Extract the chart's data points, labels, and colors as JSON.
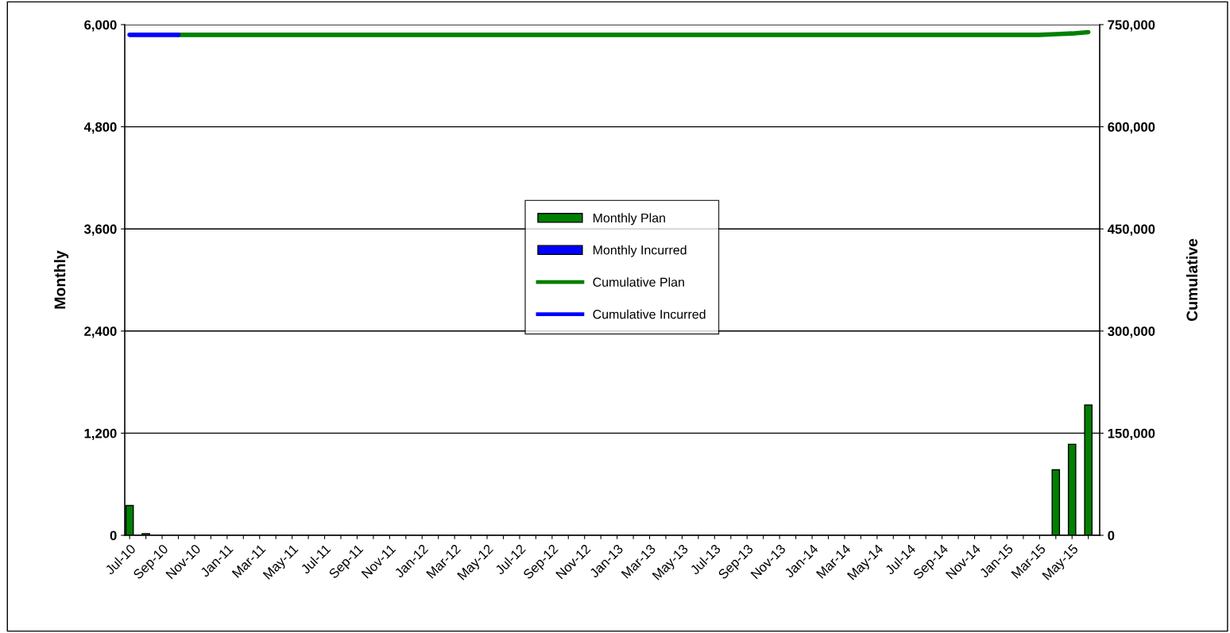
{
  "chart_data": {
    "type": "bar",
    "ylabel": "Monthly",
    "y2label": "Cumulative",
    "categories": [
      "Jul-10",
      null,
      "Sep-10",
      null,
      "Nov-10",
      null,
      "Jan-11",
      null,
      "Mar-11",
      null,
      "May-11",
      null,
      "Jul-11",
      null,
      "Sep-11",
      null,
      "Nov-11",
      null,
      "Jan-12",
      null,
      "Mar-12",
      null,
      "May-12",
      null,
      "Jul-12",
      null,
      "Sep-12",
      null,
      "Nov-12",
      null,
      "Jan-13",
      null,
      "Mar-13",
      null,
      "May-13",
      null,
      "Jul-13",
      null,
      "Sep-13",
      null,
      "Nov-13",
      null,
      "Jan-14",
      null,
      "Mar-14",
      null,
      "May-14",
      null,
      "Jul-14",
      null,
      "Sep-14",
      null,
      "Nov-14",
      null,
      "Jan-15",
      null,
      "Mar-15",
      null,
      "May-15",
      null
    ],
    "series": [
      {
        "name": "Monthly Plan",
        "color": "#008000",
        "values": [
          350,
          20,
          null,
          null,
          null,
          null,
          null,
          null,
          null,
          null,
          null,
          null,
          null,
          null,
          null,
          null,
          null,
          null,
          null,
          null,
          null,
          null,
          null,
          null,
          null,
          null,
          null,
          null,
          null,
          null,
          null,
          null,
          null,
          null,
          null,
          null,
          null,
          null,
          null,
          null,
          null,
          null,
          null,
          null,
          null,
          null,
          null,
          null,
          null,
          null,
          null,
          null,
          null,
          null,
          null,
          null,
          null,
          770,
          1070,
          1530
        ]
      },
      {
        "name": "Monthly Incurred",
        "color": "#0000ff",
        "values": [
          null,
          null,
          null,
          null,
          null,
          null,
          null,
          null,
          null,
          null,
          null,
          null,
          null,
          null,
          null,
          null,
          null,
          null,
          null,
          null,
          null,
          null,
          null,
          null,
          null,
          null,
          null,
          null,
          null,
          null,
          null,
          null,
          null,
          null,
          null,
          null,
          null,
          null,
          null,
          null,
          null,
          null,
          null,
          null,
          null,
          null,
          null,
          null,
          null,
          null,
          null,
          null,
          null,
          null,
          null,
          null,
          null,
          null,
          null,
          null
        ]
      },
      {
        "name": "Cumulative Plan",
        "type": "line",
        "axis": "y2",
        "color": "#008000",
        "values": [
          null,
          null,
          null,
          735000,
          735000,
          735000,
          735000,
          735000,
          735000,
          735000,
          735000,
          735000,
          735000,
          735000,
          735000,
          735000,
          735000,
          735000,
          735000,
          735000,
          735000,
          735000,
          735000,
          735000,
          735000,
          735000,
          735000,
          735000,
          735000,
          735000,
          735000,
          735000,
          735000,
          735000,
          735000,
          735000,
          735000,
          735000,
          735000,
          735000,
          735000,
          735000,
          735000,
          735000,
          735000,
          735000,
          735000,
          735000,
          735000,
          735000,
          735000,
          735000,
          735000,
          735000,
          735000,
          735000,
          735000,
          736000,
          737000,
          739000
        ]
      },
      {
        "name": "Cumulative Incurred",
        "type": "line",
        "axis": "y2",
        "color": "#0000ff",
        "values": [
          735000,
          735000,
          735000,
          735000,
          null,
          null,
          null,
          null,
          null,
          null,
          null,
          null,
          null,
          null,
          null,
          null,
          null,
          null,
          null,
          null,
          null,
          null,
          null,
          null,
          null,
          null,
          null,
          null,
          null,
          null,
          null,
          null,
          null,
          null,
          null,
          null,
          null,
          null,
          null,
          null,
          null,
          null,
          null,
          null,
          null,
          null,
          null,
          null,
          null,
          null,
          null,
          null,
          null,
          null,
          null,
          null,
          null,
          null,
          null,
          null
        ]
      }
    ],
    "ylim": [
      0,
      6000
    ],
    "yticks": [
      {
        "value": 0,
        "label": "0"
      },
      {
        "value": 1200,
        "label": "1,200"
      },
      {
        "value": 2400,
        "label": "2,400"
      },
      {
        "value": 3600,
        "label": "3,600"
      },
      {
        "value": 4800,
        "label": "4,800"
      },
      {
        "value": 6000,
        "label": "6,000"
      }
    ],
    "y2lim": [
      0,
      750000
    ],
    "y2ticks": [
      {
        "value": 0,
        "label": "0"
      },
      {
        "value": 150000,
        "label": "150,000"
      },
      {
        "value": 300000,
        "label": "300,000"
      },
      {
        "value": 450000,
        "label": "450,000"
      },
      {
        "value": 600000,
        "label": "600,000"
      },
      {
        "value": 750000,
        "label": "750,000"
      }
    ],
    "grid": "y",
    "legend": "center",
    "marker": "none",
    "line_style": "solid"
  }
}
